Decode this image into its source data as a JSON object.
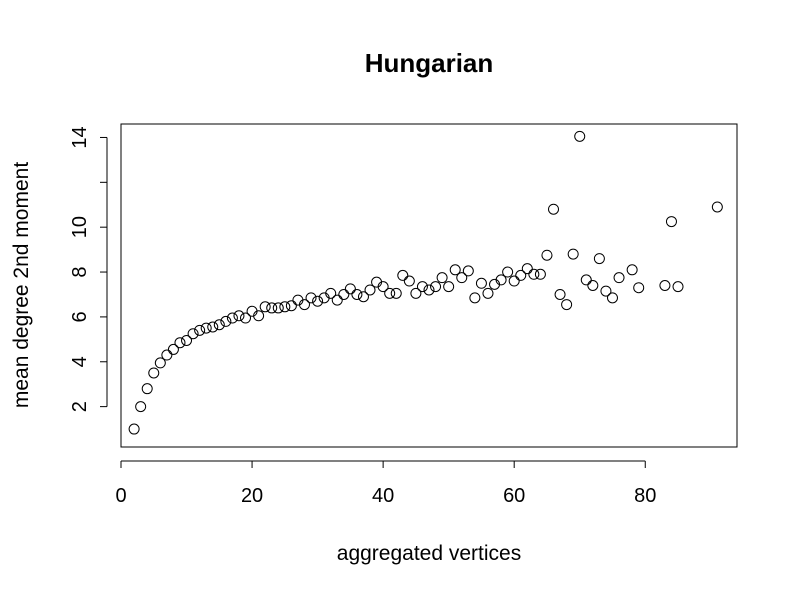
{
  "chart_data": {
    "type": "scatter",
    "title": "Hungarian",
    "xlabel": "aggregated vertices",
    "ylabel": "mean degree 2nd moment",
    "xlim": [
      0,
      94
    ],
    "ylim": [
      0.2,
      14.6
    ],
    "xticks": [
      0,
      20,
      40,
      60,
      80
    ],
    "yticks": [
      2,
      4,
      6,
      8,
      10,
      12,
      14
    ],
    "yticklabels": [
      "2",
      "4",
      "6",
      "8",
      "10",
      "",
      "14"
    ],
    "grid": false,
    "series": [
      {
        "x": [
          2,
          3,
          4,
          5,
          6,
          7,
          8,
          9,
          10,
          11,
          12,
          13,
          14,
          15,
          16,
          17,
          18,
          19,
          20,
          21,
          22,
          23,
          24,
          25,
          26,
          27,
          28,
          29,
          30,
          31,
          32,
          33,
          34,
          35,
          36,
          37,
          38,
          39,
          40,
          41,
          42,
          43,
          44,
          45,
          46,
          47,
          48,
          49,
          50,
          51,
          52,
          53,
          54,
          55,
          56,
          57,
          58,
          59,
          60,
          61,
          62,
          63,
          64,
          65,
          66,
          67,
          68,
          69,
          70,
          71,
          72,
          73,
          74,
          75,
          76,
          78,
          79,
          83,
          84,
          85,
          91
        ],
        "y": [
          1.0,
          2.0,
          2.8,
          3.5,
          3.95,
          4.3,
          4.55,
          4.85,
          4.95,
          5.25,
          5.4,
          5.5,
          5.55,
          5.65,
          5.8,
          5.95,
          6.05,
          5.95,
          6.25,
          6.05,
          6.45,
          6.4,
          6.4,
          6.45,
          6.5,
          6.75,
          6.55,
          6.85,
          6.7,
          6.85,
          7.05,
          6.75,
          7.0,
          7.25,
          7.0,
          6.9,
          7.2,
          7.55,
          7.35,
          7.05,
          7.05,
          7.85,
          7.6,
          7.05,
          7.35,
          7.2,
          7.35,
          7.75,
          7.35,
          8.1,
          7.75,
          8.05,
          6.85,
          7.5,
          7.05,
          7.45,
          7.65,
          8.0,
          7.6,
          7.85,
          8.15,
          7.9,
          7.9,
          8.75,
          10.8,
          7.0,
          6.55,
          8.8,
          14.05,
          7.65,
          7.4,
          8.6,
          7.15,
          6.85,
          7.75,
          8.1,
          7.3,
          7.4,
          10.25,
          7.35,
          10.9
        ]
      }
    ]
  }
}
